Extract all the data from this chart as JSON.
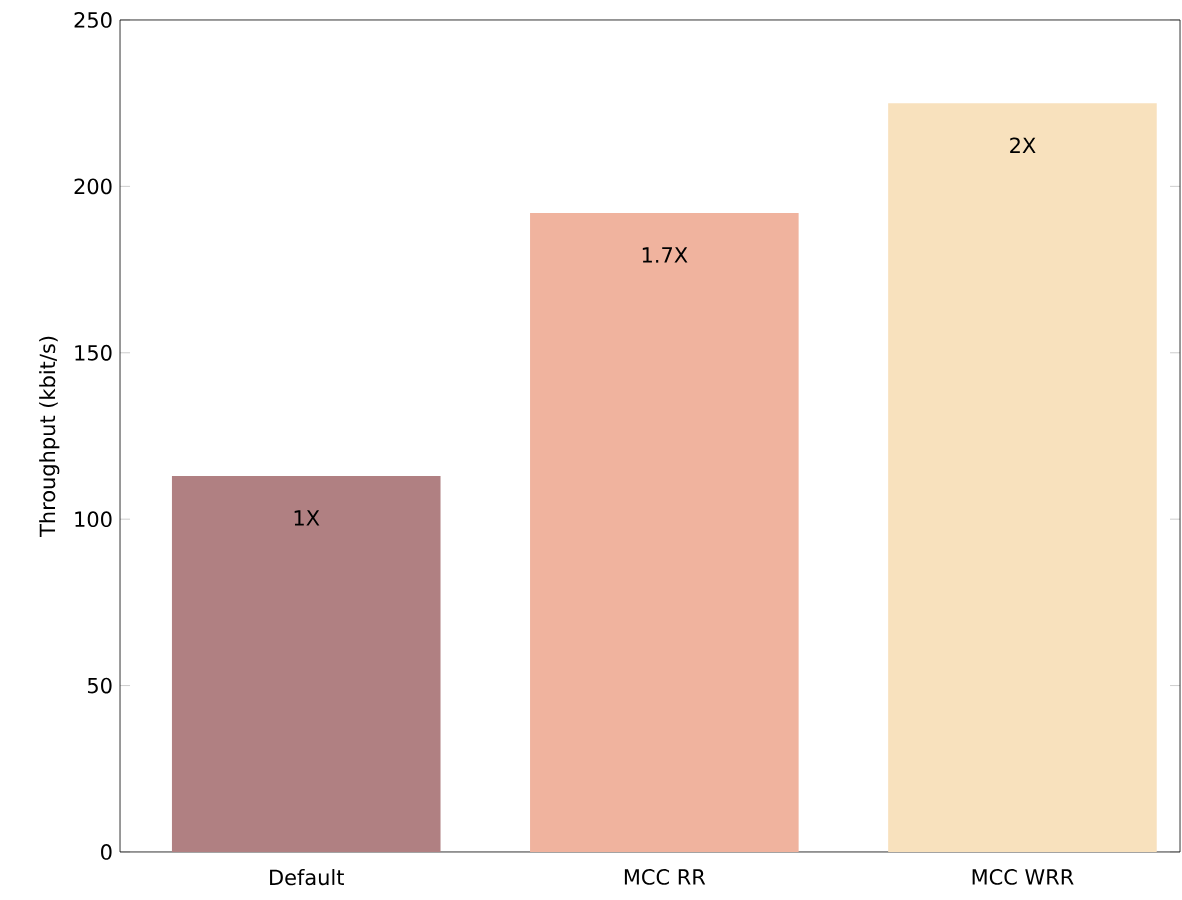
{
  "chart_data": {
    "type": "bar",
    "ylabel": "Throughput (kbit/s)",
    "categories": [
      "Default",
      "MCC RR",
      "MCC WRR"
    ],
    "values": [
      113,
      192,
      225
    ],
    "colors": [
      "#b08082",
      "#f0b39e",
      "#f8e1bd"
    ],
    "annotations": [
      "1X",
      "1.7X",
      "2X"
    ],
    "ylim": [
      0,
      250
    ],
    "yticks": [
      0,
      50,
      100,
      150,
      200,
      250
    ],
    "grid": false
  }
}
